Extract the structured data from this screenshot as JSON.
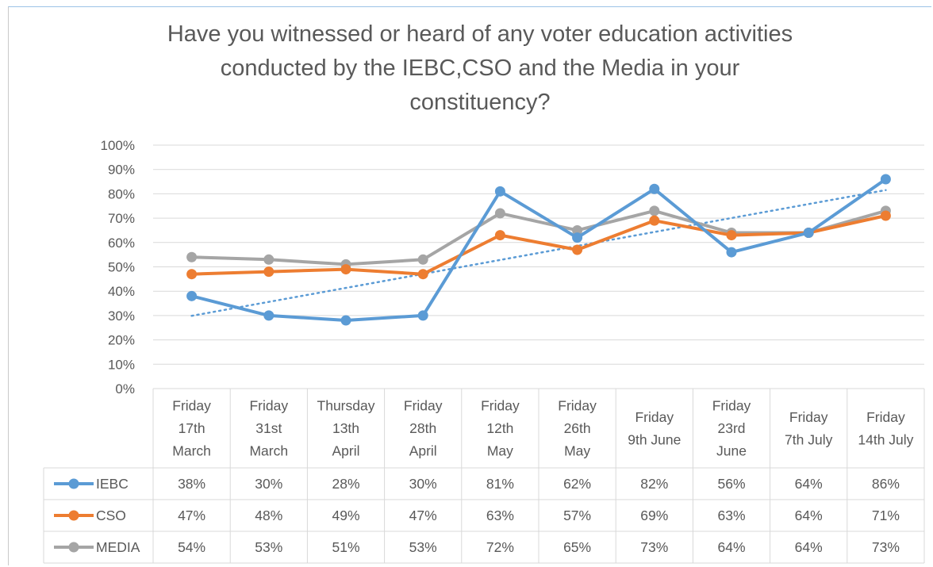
{
  "chart_data": {
    "type": "line",
    "title_lines": [
      "Have you witnessed or heard of any voter education activities",
      "conducted by the IEBC,CSO and the Media in your",
      "constituency?"
    ],
    "categories": [
      [
        "Friday",
        "17th",
        "March"
      ],
      [
        "Friday",
        "31st",
        "March"
      ],
      [
        "Thursday",
        "13th",
        "April"
      ],
      [
        "Friday",
        "28th",
        "April"
      ],
      [
        "Friday",
        "12th",
        "May"
      ],
      [
        "Friday",
        "26th",
        "May"
      ],
      [
        "Friday",
        "9th June"
      ],
      [
        "Friday",
        "23rd",
        "June"
      ],
      [
        "Friday",
        "7th July"
      ],
      [
        "Friday",
        "14th July"
      ]
    ],
    "y_ticks": [
      "100%",
      "90%",
      "80%",
      "70%",
      "60%",
      "50%",
      "40%",
      "30%",
      "20%",
      "10%",
      "0%"
    ],
    "ylim": [
      0,
      100
    ],
    "grid": true,
    "legend": "data-table",
    "series": [
      {
        "name": "IEBC",
        "color": "#5b9bd5",
        "values": [
          38,
          30,
          28,
          30,
          81,
          62,
          82,
          56,
          64,
          86
        ],
        "labels": [
          "38%",
          "30%",
          "28%",
          "30%",
          "81%",
          "62%",
          "82%",
          "56%",
          "64%",
          "86%"
        ]
      },
      {
        "name": "CSO",
        "color": "#ed7d31",
        "values": [
          47,
          48,
          49,
          47,
          63,
          57,
          69,
          63,
          64,
          71
        ],
        "labels": [
          "47%",
          "48%",
          "49%",
          "47%",
          "63%",
          "57%",
          "69%",
          "63%",
          "64%",
          "71%"
        ]
      },
      {
        "name": "MEDIA",
        "color": "#a5a5a5",
        "values": [
          54,
          53,
          51,
          53,
          72,
          65,
          73,
          64,
          64,
          73
        ],
        "labels": [
          "54%",
          "53%",
          "51%",
          "53%",
          "72%",
          "65%",
          "73%",
          "64%",
          "64%",
          "73%"
        ]
      }
    ],
    "trendline": {
      "series": "IEBC",
      "type": "linear",
      "style": "dotted",
      "color": "#5b9bd5"
    }
  }
}
